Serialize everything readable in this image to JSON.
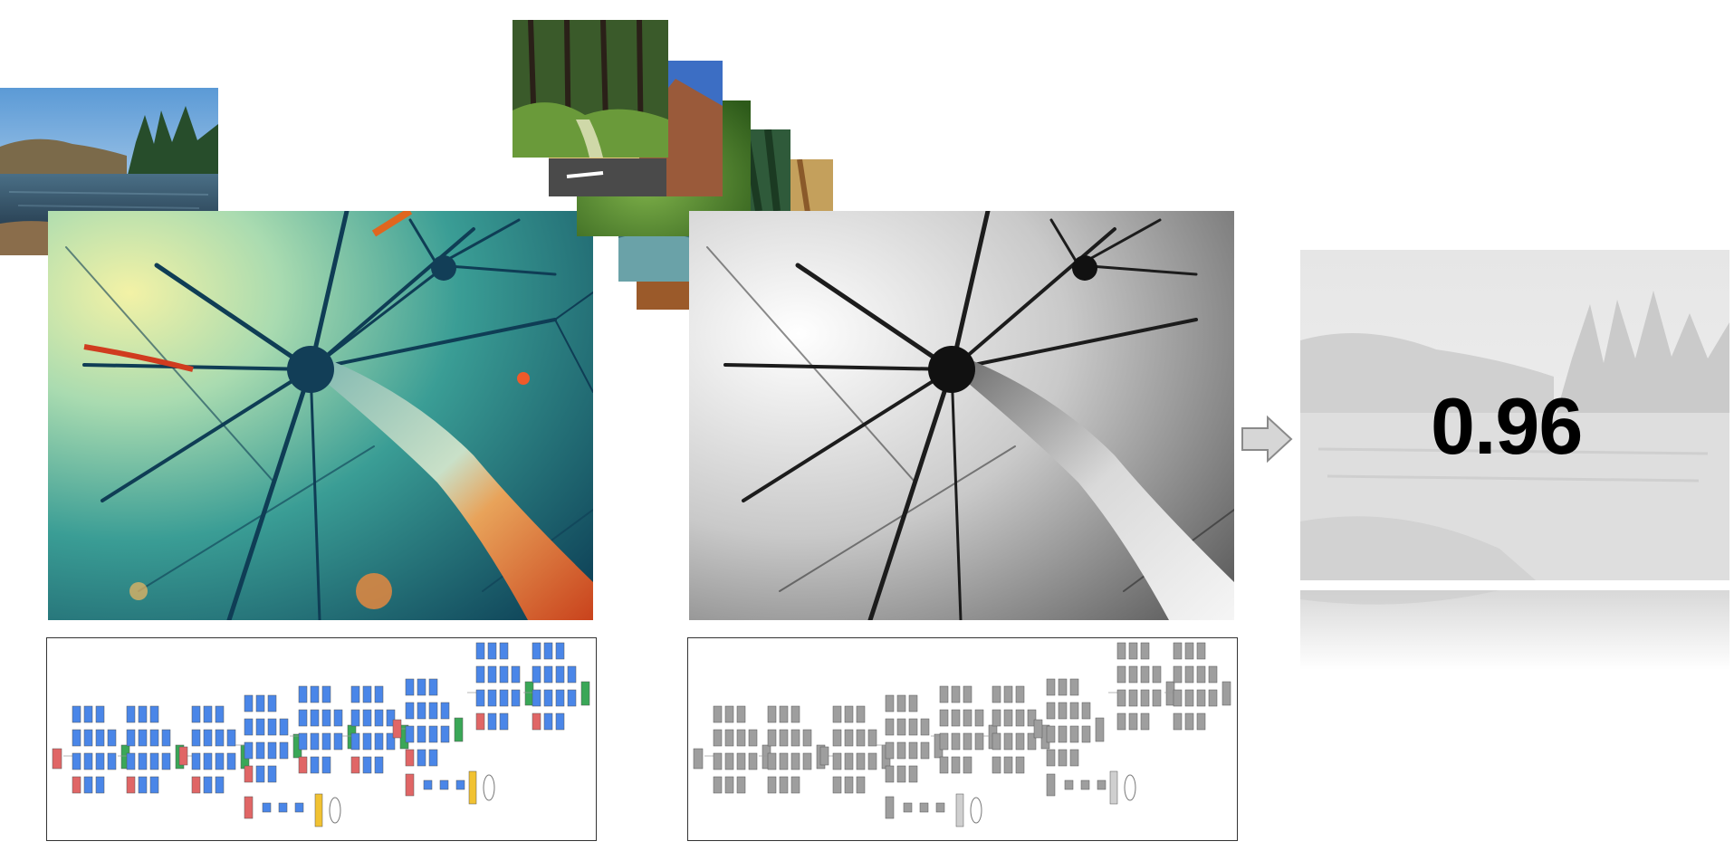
{
  "result": {
    "score_label": "0.96"
  },
  "colors": {
    "conv_blue": "#4a86e8",
    "pool_red": "#e06666",
    "concat_green": "#3aa757",
    "softmax_yellow": "#f1c232",
    "gray_block": "#9e9e9e",
    "neuron_teal": "#1f6f7a",
    "neuron_orange": "#e87a2e"
  },
  "icons": {
    "arrow": "right-arrow-icon"
  }
}
